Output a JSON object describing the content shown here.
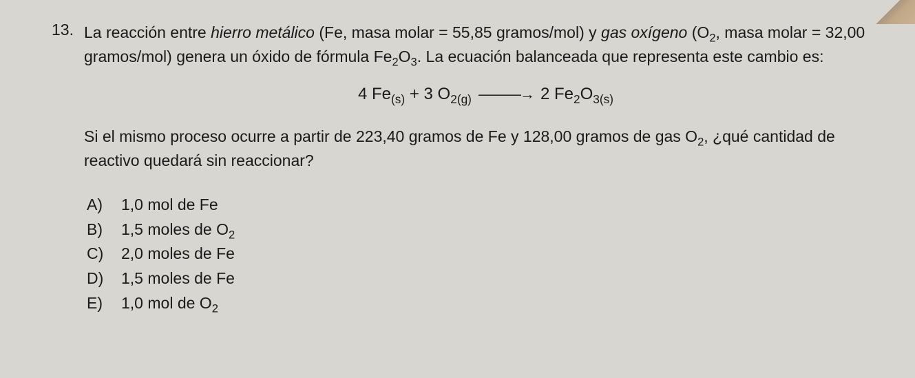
{
  "background_color": "#d8d6d1",
  "text_color": "#1a1a1a",
  "font_size_body": 23,
  "font_size_equation": 24,
  "question": {
    "number": "13.",
    "intro_parts": {
      "p1": "La reacción entre ",
      "p2_italic": "hierro metálico",
      "p3": " (Fe, masa molar = 55,85 gramos/mol) y ",
      "p4_italic": "gas oxígeno",
      "p5": " (O",
      "p5_sub": "2",
      "p6": ", masa molar = 32,00 gramos/mol) genera un óxido de fórmula Fe",
      "p6_sub1": "2",
      "p7": "O",
      "p7_sub": "3",
      "p8": ". La ecuación balanceada que representa este cambio es:"
    },
    "equation": {
      "lhs_coef1": "4 Fe",
      "lhs_state1": "(s)",
      "plus": "  +  ",
      "lhs_coef2": "3 O",
      "lhs_sub2": "2(g)",
      "arrow": "———→",
      "rhs_coef": "2 Fe",
      "rhs_sub1": "2",
      "rhs_o": "O",
      "rhs_sub2": "3(s)"
    },
    "followup_parts": {
      "f1": "Si el mismo proceso ocurre a partir de 223,40 gramos de Fe y 128,00 gramos de gas O",
      "f1_sub": "2",
      "f2": ", ¿qué cantidad de reactivo quedará sin reaccionar?"
    },
    "options": {
      "a_letter": "A)",
      "a_text": "1,0 mol de Fe",
      "b_letter": "B)",
      "b_text_pre": "1,5 moles de O",
      "b_text_sub": "2",
      "c_letter": "C)",
      "c_text": "2,0 moles de Fe",
      "d_letter": "D)",
      "d_text": "1,5 moles de Fe",
      "e_letter": "E)",
      "e_text_pre": "1,0 mol de O",
      "e_text_sub": "2"
    }
  }
}
